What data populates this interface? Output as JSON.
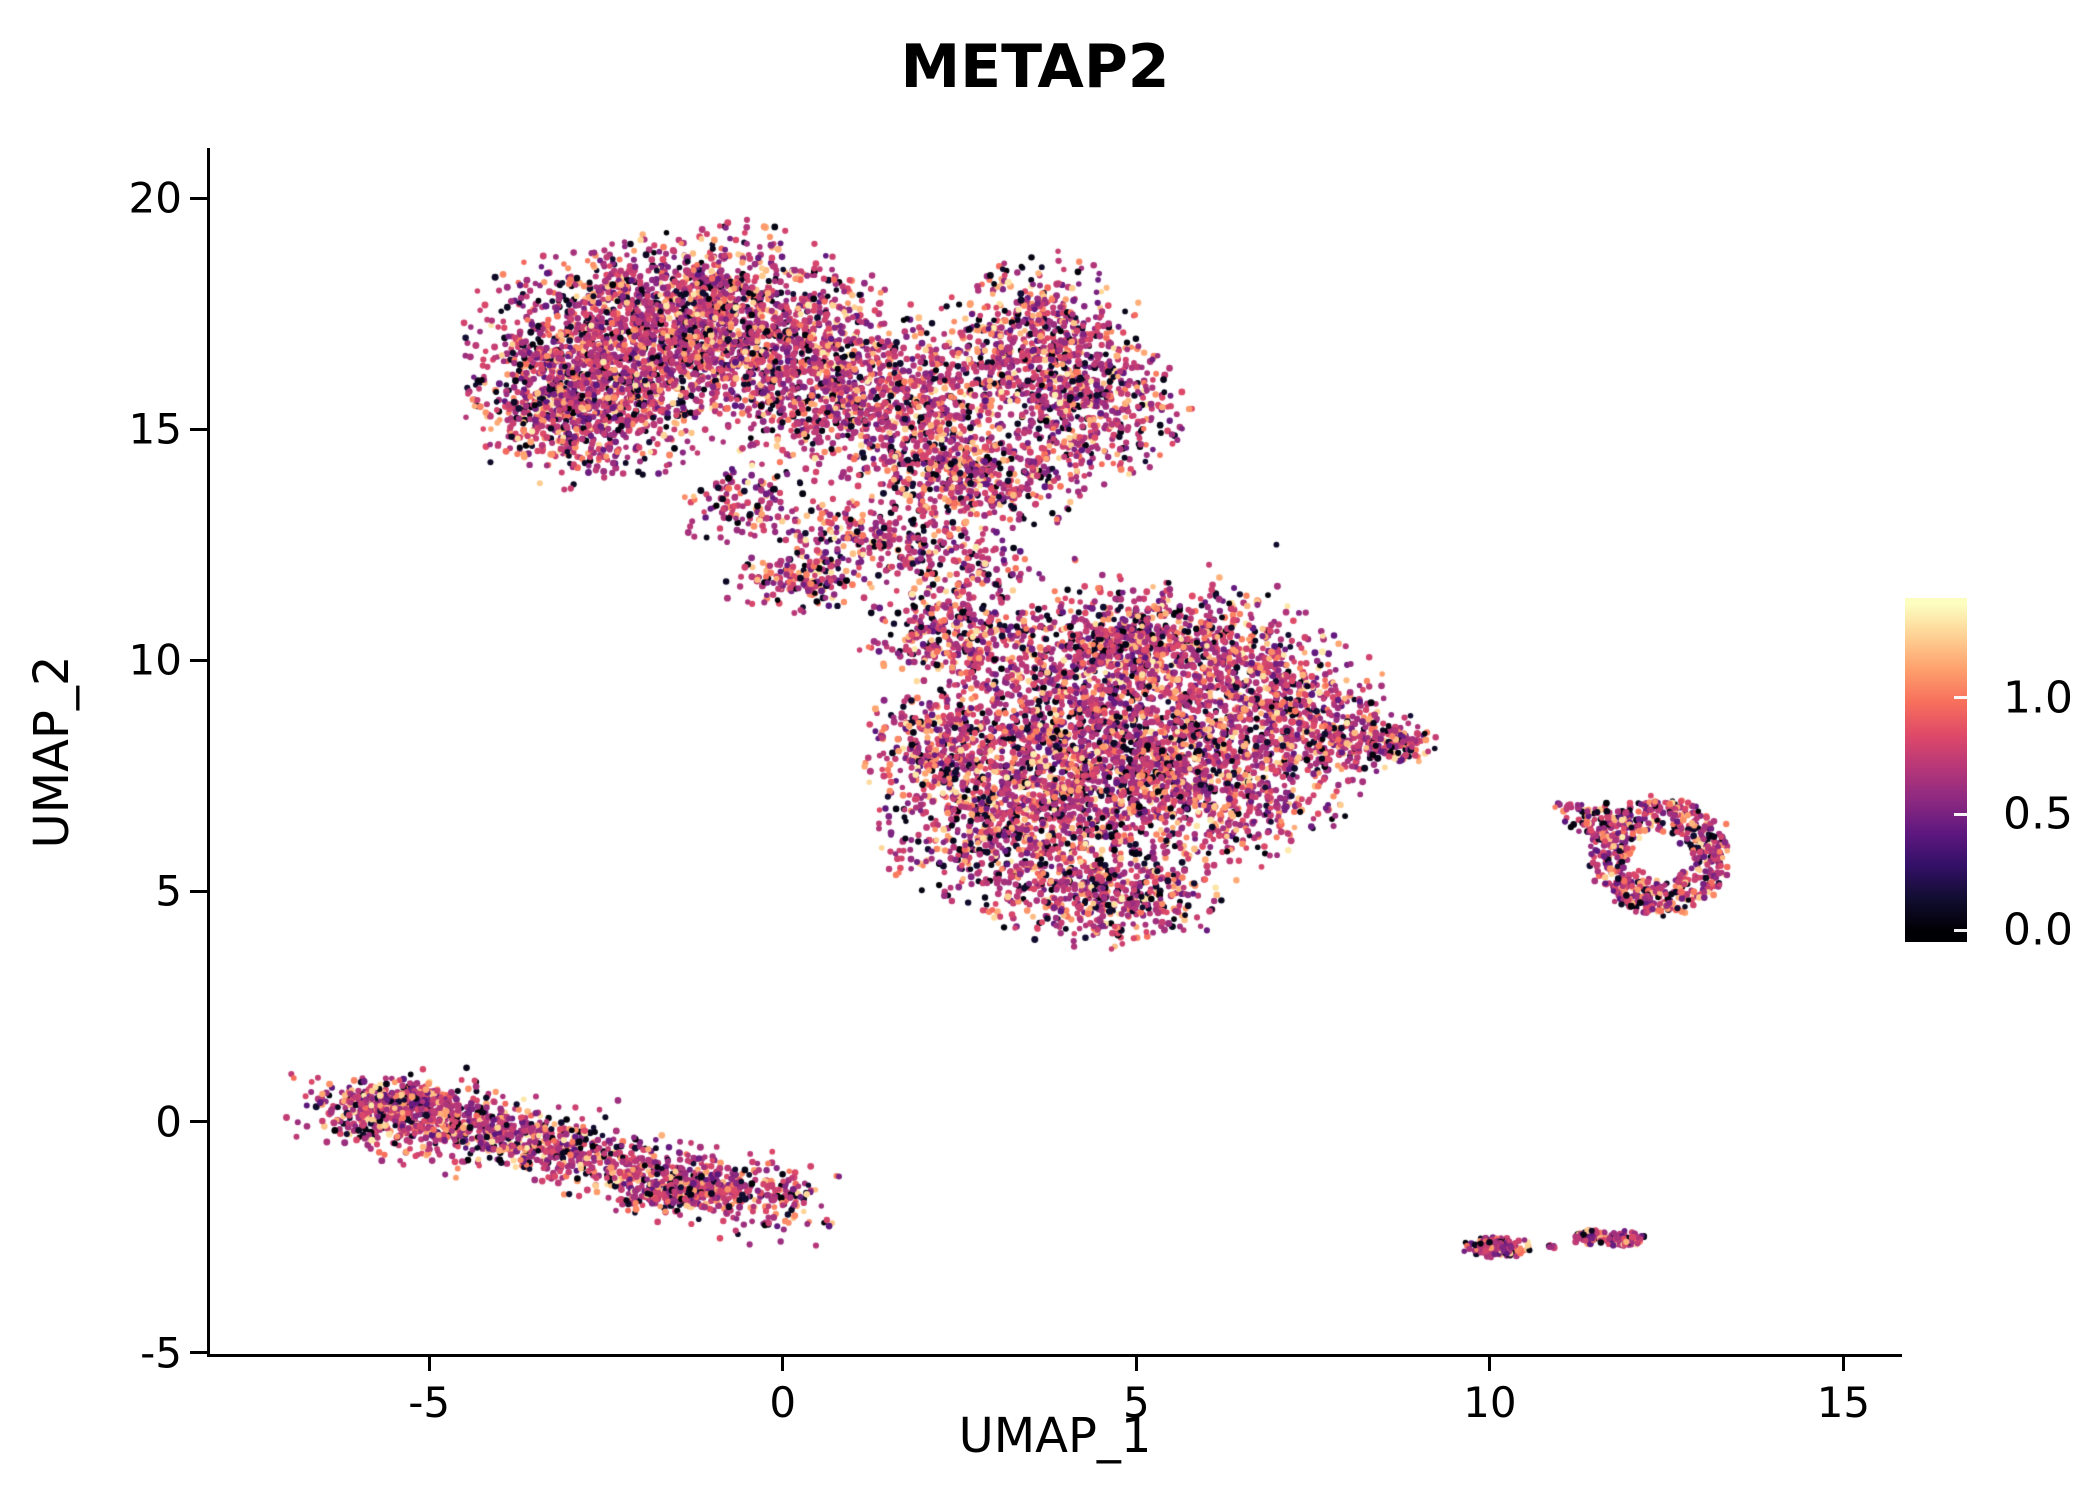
{
  "title": "METAP2",
  "axes": {
    "x_label": "UMAP_1",
    "y_label": "UMAP_2",
    "x_ticks": [
      -5,
      0,
      5,
      10,
      15
    ],
    "y_ticks": [
      -5,
      0,
      5,
      10,
      15,
      20
    ]
  },
  "colorbar": {
    "tick_labels": [
      "1.0",
      "0.5",
      "0.0"
    ],
    "tick_values": [
      1.0,
      0.5,
      0.0
    ],
    "bar_range": [
      -0.05,
      1.43
    ],
    "vmin": 0.0,
    "vmax": 1.4
  },
  "chart_data": {
    "type": "scatter",
    "title": "METAP2",
    "xlabel": "UMAP_1",
    "ylabel": "UMAP_2",
    "xlim": [
      -8.1,
      15.8
    ],
    "ylim": [
      -5.05,
      21.05
    ],
    "grid": false,
    "legend_position": "right-colorbar",
    "point_radius_px": 3,
    "seed": 1234,
    "color_vmax": 1.4,
    "colormap": [
      [
        0.0,
        "#000004"
      ],
      [
        0.1,
        "#120d31"
      ],
      [
        0.2,
        "#331068"
      ],
      [
        0.3,
        "#5f187f"
      ],
      [
        0.4,
        "#8c2981"
      ],
      [
        0.5,
        "#b73779"
      ],
      [
        0.6,
        "#de4968"
      ],
      [
        0.7,
        "#f76f5c"
      ],
      [
        0.8,
        "#fe9f6d"
      ],
      [
        0.9,
        "#fecf92"
      ],
      [
        1.0,
        "#fcfdbf"
      ]
    ],
    "value_mix": [
      {
        "w": 0.5,
        "lo": 0.6,
        "hi": 0.85
      },
      {
        "w": 0.13,
        "lo": 0.4,
        "hi": 0.6
      },
      {
        "w": 0.15,
        "lo": 0.0,
        "hi": 0.15
      },
      {
        "w": 0.16,
        "lo": 0.95,
        "hi": 1.2
      },
      {
        "w": 0.06,
        "lo": 1.2,
        "hi": 1.35
      }
    ],
    "clusters": [
      {
        "name": "upper-left-lobe-1",
        "type": "blob",
        "cx": -2.4,
        "cy": 16.6,
        "rx": 2.1,
        "ry": 2.5,
        "n": 1400
      },
      {
        "name": "upper-left-lobe-2",
        "type": "blob",
        "cx": -0.9,
        "cy": 17.4,
        "rx": 1.9,
        "ry": 2.1,
        "n": 1000
      },
      {
        "name": "upper-left-lobe-3",
        "type": "blob",
        "cx": -3.0,
        "cy": 15.4,
        "rx": 1.4,
        "ry": 1.6,
        "n": 500
      },
      {
        "name": "upper-mid-lobe",
        "type": "blob",
        "cx": 0.6,
        "cy": 16.2,
        "rx": 1.7,
        "ry": 2.3,
        "n": 800
      },
      {
        "name": "upper-mid-lower",
        "type": "blob",
        "cx": 2.0,
        "cy": 15.3,
        "rx": 1.6,
        "ry": 1.8,
        "n": 550
      },
      {
        "name": "upper-right-lobe-top",
        "type": "blob",
        "cx": 3.6,
        "cy": 16.9,
        "rx": 1.5,
        "ry": 1.9,
        "n": 600
      },
      {
        "name": "upper-right-lobe",
        "type": "blob",
        "cx": 4.4,
        "cy": 15.5,
        "rx": 1.3,
        "ry": 1.6,
        "n": 450
      },
      {
        "name": "upper-bottom-bulge",
        "type": "blob",
        "cx": 2.8,
        "cy": 13.9,
        "rx": 1.7,
        "ry": 1.2,
        "n": 420
      },
      {
        "name": "upper-tail",
        "type": "blob",
        "cx": 1.2,
        "cy": 12.6,
        "rx": 1.4,
        "ry": 1.0,
        "n": 260
      },
      {
        "name": "upper-neck",
        "type": "blob",
        "cx": 0.2,
        "cy": 11.7,
        "rx": 1.1,
        "ry": 0.65,
        "n": 150
      },
      {
        "name": "upper-under",
        "type": "blob",
        "cx": -0.6,
        "cy": 13.4,
        "rx": 0.9,
        "ry": 1.0,
        "n": 120
      },
      {
        "name": "bridge",
        "type": "blob",
        "cx": 2.6,
        "cy": 12.0,
        "rx": 1.1,
        "ry": 0.8,
        "n": 130
      },
      {
        "name": "sparse-outliers",
        "type": "blob",
        "cx": 5.5,
        "cy": 11.8,
        "rx": 2.5,
        "ry": 1.2,
        "n": 18
      },
      {
        "name": "center-core",
        "type": "blob",
        "cx": 4.2,
        "cy": 8.6,
        "rx": 2.7,
        "ry": 2.4,
        "n": 1500
      },
      {
        "name": "center-right",
        "type": "blob",
        "cx": 5.9,
        "cy": 7.3,
        "rx": 2.2,
        "ry": 2.0,
        "n": 1000
      },
      {
        "name": "center-left-low",
        "type": "blob",
        "cx": 3.3,
        "cy": 6.4,
        "rx": 1.9,
        "ry": 1.9,
        "n": 800
      },
      {
        "name": "center-top",
        "type": "blob",
        "cx": 5.2,
        "cy": 10.4,
        "rx": 2.3,
        "ry": 1.3,
        "n": 700
      },
      {
        "name": "center-top-right",
        "type": "blob",
        "cx": 6.9,
        "cy": 9.3,
        "rx": 1.6,
        "ry": 1.4,
        "n": 450
      },
      {
        "name": "center-bottom",
        "type": "blob",
        "cx": 4.6,
        "cy": 4.9,
        "rx": 1.7,
        "ry": 1.1,
        "n": 450
      },
      {
        "name": "center-top-left",
        "type": "blob",
        "cx": 2.4,
        "cy": 10.6,
        "rx": 1.3,
        "ry": 1.1,
        "n": 300
      },
      {
        "name": "center-left-edge",
        "type": "blob",
        "cx": 2.1,
        "cy": 8.0,
        "rx": 1.0,
        "ry": 1.5,
        "n": 260
      },
      {
        "name": "center-right-tip",
        "type": "blob",
        "cx": 7.9,
        "cy": 8.3,
        "rx": 1.1,
        "ry": 0.9,
        "n": 220
      },
      {
        "name": "center-right-point",
        "type": "blob",
        "cx": 8.7,
        "cy": 8.2,
        "rx": 0.55,
        "ry": 0.45,
        "n": 90
      },
      {
        "name": "stripe-left",
        "type": "stripe",
        "x1": -6.25,
        "y1": 0.35,
        "x2": -3.4,
        "y2": -0.35,
        "w": 0.38,
        "n": 800
      },
      {
        "name": "stripe-right",
        "type": "stripe",
        "x1": -3.6,
        "y1": -0.5,
        "x2": 0.25,
        "y2": -1.8,
        "w": 0.34,
        "n": 750
      },
      {
        "name": "stripe-left-bulge",
        "type": "blob",
        "cx": -5.3,
        "cy": 0.45,
        "rx": 0.75,
        "ry": 0.4,
        "n": 200
      },
      {
        "name": "stripe-right-bulge",
        "type": "blob",
        "cx": -1.5,
        "cy": -1.55,
        "rx": 0.9,
        "ry": 0.45,
        "n": 180
      },
      {
        "name": "right-ring",
        "type": "ring",
        "cx": 12.4,
        "cy": 5.75,
        "rx": 0.95,
        "ry": 1.25,
        "hole": 0.42,
        "n": 600
      },
      {
        "name": "right-ring-west",
        "type": "blob",
        "cx": 11.5,
        "cy": 6.6,
        "rx": 0.45,
        "ry": 0.35,
        "n": 60
      },
      {
        "name": "right-ring-outlier",
        "type": "blob",
        "cx": 11.15,
        "cy": 6.85,
        "rx": 0.25,
        "ry": 0.15,
        "n": 12
      },
      {
        "name": "bottom-right-1",
        "type": "blob",
        "cx": 10.1,
        "cy": -2.72,
        "rx": 0.5,
        "ry": 0.22,
        "n": 170
      },
      {
        "name": "bottom-right-dot",
        "type": "blob",
        "cx": 10.85,
        "cy": -2.7,
        "rx": 0.1,
        "ry": 0.07,
        "n": 8
      },
      {
        "name": "bottom-right-2a",
        "type": "blob",
        "cx": 11.4,
        "cy": -2.48,
        "rx": 0.3,
        "ry": 0.16,
        "n": 60
      },
      {
        "name": "bottom-right-2b",
        "type": "blob",
        "cx": 11.9,
        "cy": -2.55,
        "rx": 0.35,
        "ry": 0.18,
        "n": 90
      }
    ]
  }
}
